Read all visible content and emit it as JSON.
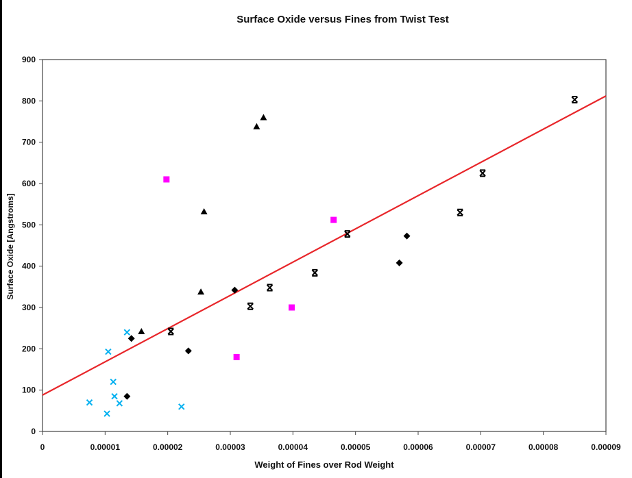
{
  "chart_data": {
    "type": "scatter",
    "title": "Surface Oxide versus Fines from Twist Test",
    "xlabel": "Weight of Fines over Rod Weight",
    "ylabel": "Surface Oxide [Angstroms]",
    "xlim": [
      0,
      9e-05
    ],
    "ylim": [
      0,
      900
    ],
    "x_ticks": [
      "0",
      "0.00001",
      "0.00002",
      "0.00003",
      "0.00004",
      "0.00005",
      "0.00006",
      "0.00007",
      "0.00008",
      "0.00009"
    ],
    "y_ticks": [
      "0",
      "100",
      "200",
      "300",
      "400",
      "500",
      "600",
      "700",
      "800",
      "900"
    ],
    "grid": false,
    "legend": "none",
    "series": [
      {
        "marker": "diamond",
        "color": "#000000",
        "points": [
          {
            "x": 1.35e-05,
            "y": 85
          },
          {
            "x": 1.42e-05,
            "y": 225
          },
          {
            "x": 2.33e-05,
            "y": 195
          },
          {
            "x": 3.07e-05,
            "y": 342
          },
          {
            "x": 5.7e-05,
            "y": 408
          },
          {
            "x": 5.82e-05,
            "y": 473
          }
        ]
      },
      {
        "marker": "square",
        "color": "#ff00ff",
        "points": [
          {
            "x": 1.98e-05,
            "y": 610
          },
          {
            "x": 3.1e-05,
            "y": 180
          },
          {
            "x": 3.98e-05,
            "y": 300
          },
          {
            "x": 4.65e-05,
            "y": 512
          }
        ]
      },
      {
        "marker": "triangle",
        "color": "#000000",
        "points": [
          {
            "x": 1.58e-05,
            "y": 242
          },
          {
            "x": 2.53e-05,
            "y": 338
          },
          {
            "x": 2.58e-05,
            "y": 532
          },
          {
            "x": 3.42e-05,
            "y": 738
          },
          {
            "x": 3.53e-05,
            "y": 760
          }
        ]
      },
      {
        "marker": "x",
        "color": "#00b0f0",
        "points": [
          {
            "x": 7.5e-06,
            "y": 70
          },
          {
            "x": 1.03e-05,
            "y": 43
          },
          {
            "x": 1.05e-05,
            "y": 193
          },
          {
            "x": 1.13e-05,
            "y": 120
          },
          {
            "x": 1.15e-05,
            "y": 85
          },
          {
            "x": 1.23e-05,
            "y": 68
          },
          {
            "x": 1.35e-05,
            "y": 240
          },
          {
            "x": 2.22e-05,
            "y": 60
          }
        ]
      },
      {
        "marker": "asterisk",
        "color": "#000000",
        "points": [
          {
            "x": 2.05e-05,
            "y": 242
          },
          {
            "x": 3.32e-05,
            "y": 303
          },
          {
            "x": 3.63e-05,
            "y": 348
          },
          {
            "x": 4.35e-05,
            "y": 384
          },
          {
            "x": 4.87e-05,
            "y": 478
          },
          {
            "x": 6.67e-05,
            "y": 530
          },
          {
            "x": 7.03e-05,
            "y": 625
          },
          {
            "x": 8.5e-05,
            "y": 803
          }
        ]
      }
    ],
    "trendline": {
      "type": "linear",
      "color": "#e8262a",
      "x": [
        0,
        9e-05
      ],
      "y": [
        88,
        812
      ]
    }
  }
}
